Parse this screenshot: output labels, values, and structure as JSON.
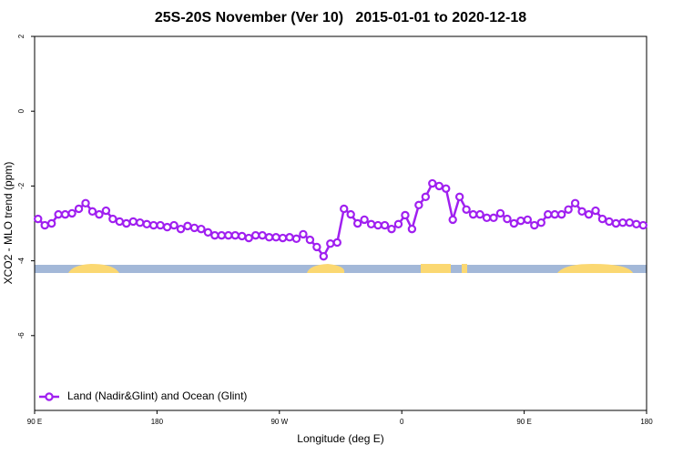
{
  "chart_data": {
    "type": "line",
    "title": "25S-20S November (Ver 10)   2015-01-01 to 2020-12-18",
    "x_label": "Longitude (deg E)",
    "y_label": "XCO2 - MLO trend (ppm)",
    "xlim": [
      90,
      540
    ],
    "xticks": [
      {
        "value": 90,
        "label": "90 E"
      },
      180,
      {
        "value": 270,
        "label": "90 W"
      },
      {
        "value": 360,
        "label": "0"
      },
      {
        "value": 450,
        "label": "90 E"
      },
      {
        "value": 540,
        "label": "180"
      }
    ],
    "ylim": [
      -8,
      2
    ],
    "yticks": [
      -6,
      -4,
      -2,
      0,
      2
    ],
    "legend": "bottom-left",
    "x": [
      92.5,
      97.5,
      102.5,
      107.5,
      112.5,
      117.5,
      122.5,
      127.5,
      132.5,
      137.5,
      142.5,
      147.5,
      152.5,
      157.5,
      162.5,
      167.5,
      172.5,
      177.5,
      182.5,
      187.5,
      192.5,
      197.5,
      202.5,
      207.5,
      212.5,
      217.5,
      222.5,
      227.5,
      232.5,
      237.5,
      242.5,
      247.5,
      252.5,
      257.5,
      262.5,
      267.5,
      272.5,
      277.5,
      282.5,
      287.5,
      292.5,
      297.5,
      302.5,
      307.5,
      312.5,
      317.5,
      322.5,
      327.5,
      332.5,
      337.5,
      342.5,
      347.5,
      352.5,
      357.5,
      362.5,
      367.5,
      372.5,
      377.5,
      382.5,
      387.5,
      392.5,
      397.5,
      402.5,
      407.5,
      412.5,
      417.5,
      422.5,
      427.5,
      432.5,
      437.5,
      442.5,
      447.5,
      452.5,
      457.5,
      462.5,
      467.5,
      472.5,
      477.5,
      482.5,
      487.5,
      492.5,
      497.5,
      502.5,
      507.5,
      512.5,
      517.5,
      522.5,
      527.5,
      532.5,
      537.5
    ],
    "series": [
      {
        "name": "Land (Nadir&Glint) and Ocean (Glint)",
        "color": "#a020f0",
        "values": [
          -2.88,
          -3.05,
          -3.0,
          -2.76,
          -2.76,
          -2.73,
          -2.61,
          -2.46,
          -2.68,
          -2.76,
          -2.66,
          -2.88,
          -2.95,
          -3.0,
          -2.95,
          -2.98,
          -3.02,
          -3.05,
          -3.05,
          -3.1,
          -3.05,
          -3.15,
          -3.07,
          -3.12,
          -3.15,
          -3.24,
          -3.32,
          -3.32,
          -3.32,
          -3.32,
          -3.34,
          -3.39,
          -3.32,
          -3.32,
          -3.37,
          -3.37,
          -3.39,
          -3.37,
          -3.41,
          -3.29,
          -3.44,
          -3.63,
          -3.88,
          -3.54,
          -3.51,
          -2.61,
          -2.76,
          -3.0,
          -2.9,
          -3.02,
          -3.05,
          -3.05,
          -3.15,
          -3.02,
          -2.78,
          -3.15,
          -2.51,
          -2.29,
          -1.93,
          -2.0,
          -2.07,
          -2.9,
          -2.29,
          -2.63,
          -2.76,
          -2.76,
          -2.85,
          -2.85,
          -2.73,
          -2.88,
          -3.0,
          -2.93,
          -2.9,
          -3.05,
          -2.98,
          -2.76,
          -2.76,
          -2.76,
          -2.63,
          -2.46,
          -2.68,
          -2.76,
          -2.66,
          -2.88,
          -2.95,
          -3.0,
          -2.98,
          -2.98,
          -3.02,
          -3.05
        ]
      }
    ]
  }
}
